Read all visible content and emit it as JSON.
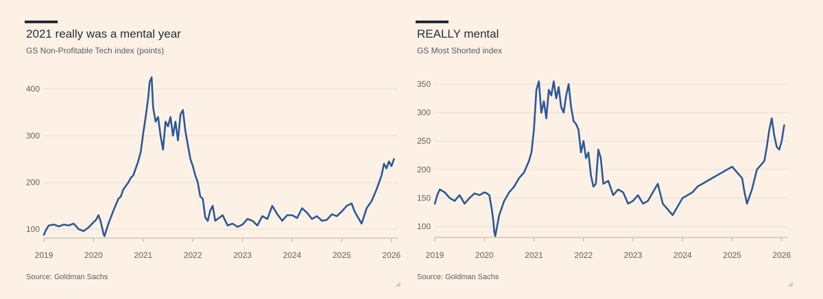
{
  "charts": {
    "left": {
      "title": "2021 really was a mental year",
      "subtitle": "GS Non-Profitable Tech index (points)",
      "source": "Source: Goldman Sachs"
    },
    "right": {
      "title": "REALLY mental",
      "subtitle": "GS Most Shorted index",
      "source": "Source: Goldman Sachs"
    }
  },
  "colors": {
    "line": "#2b5797",
    "grid": "#e8ddd3",
    "background": "#fdf1e6",
    "text": "#262a33"
  },
  "chart_data": [
    {
      "type": "line",
      "title": "2021 really was a mental year",
      "subtitle": "GS Non-Profitable Tech index (points)",
      "xlim": [
        2019.0,
        2026.1
      ],
      "ylim": [
        80,
        440
      ],
      "xticks": [
        2019,
        2020,
        2021,
        2022,
        2023,
        2024,
        2025,
        2026
      ],
      "yticks": [
        100,
        200,
        300,
        400
      ],
      "grid": true,
      "series": [
        {
          "x": [
            2019.0,
            2019.05,
            2019.1,
            2019.2,
            2019.3,
            2019.4,
            2019.5,
            2019.6,
            2019.7,
            2019.8,
            2019.9,
            2020.0,
            2020.05,
            2020.1,
            2020.14,
            2020.18,
            2020.2,
            2020.22,
            2020.3,
            2020.4,
            2020.5,
            2020.55,
            2020.6,
            2020.7,
            2020.75,
            2020.8,
            2020.9,
            2020.95,
            2021.0,
            2021.05,
            2021.1,
            2021.13,
            2021.17,
            2021.2,
            2021.25,
            2021.3,
            2021.35,
            2021.4,
            2021.45,
            2021.5,
            2021.55,
            2021.6,
            2021.65,
            2021.7,
            2021.75,
            2021.8,
            2021.85,
            2021.9,
            2021.95,
            2022.0,
            2022.05,
            2022.1,
            2022.15,
            2022.2,
            2022.25,
            2022.3,
            2022.35,
            2022.4,
            2022.45,
            2022.5,
            2022.6,
            2022.7,
            2022.8,
            2022.9,
            2023.0,
            2023.1,
            2023.2,
            2023.3,
            2023.4,
            2023.5,
            2023.6,
            2023.7,
            2023.8,
            2023.9,
            2024.0,
            2024.1,
            2024.2,
            2024.3,
            2024.4,
            2024.5,
            2024.6,
            2024.7,
            2024.8,
            2024.9,
            2025.0,
            2025.1,
            2025.2,
            2025.25,
            2025.3,
            2025.4,
            2025.5,
            2025.6,
            2025.7,
            2025.75,
            2025.8,
            2025.85,
            2025.9,
            2025.95,
            2026.0,
            2026.05
          ],
          "values": [
            88,
            100,
            108,
            110,
            106,
            110,
            108,
            112,
            100,
            96,
            104,
            115,
            120,
            130,
            118,
            100,
            90,
            85,
            112,
            140,
            165,
            170,
            185,
            200,
            210,
            215,
            245,
            265,
            305,
            340,
            380,
            415,
            425,
            360,
            330,
            340,
            300,
            270,
            330,
            320,
            340,
            300,
            330,
            290,
            345,
            355,
            310,
            280,
            250,
            235,
            215,
            200,
            170,
            165,
            125,
            118,
            140,
            150,
            118,
            122,
            130,
            108,
            112,
            105,
            110,
            122,
            118,
            108,
            128,
            122,
            150,
            132,
            118,
            130,
            130,
            124,
            145,
            135,
            122,
            128,
            118,
            120,
            132,
            128,
            138,
            150,
            155,
            140,
            130,
            112,
            145,
            160,
            185,
            200,
            215,
            240,
            230,
            245,
            235,
            250
          ]
        }
      ]
    },
    {
      "type": "line",
      "title": "REALLY mental",
      "subtitle": "GS Most Shorted index",
      "xlim": [
        2019.0,
        2026.1
      ],
      "ylim": [
        80,
        365
      ],
      "xticks": [
        2019,
        2020,
        2021,
        2022,
        2023,
        2024,
        2025,
        2026
      ],
      "yticks": [
        100,
        150,
        200,
        250,
        300,
        350
      ],
      "grid": true,
      "series": [
        {
          "x": [
            2019.0,
            2019.05,
            2019.1,
            2019.2,
            2019.3,
            2019.4,
            2019.5,
            2019.6,
            2019.7,
            2019.8,
            2019.9,
            2020.0,
            2020.05,
            2020.1,
            2020.15,
            2020.18,
            2020.2,
            2020.22,
            2020.3,
            2020.4,
            2020.5,
            2020.6,
            2020.7,
            2020.8,
            2020.9,
            2020.95,
            2021.0,
            2021.05,
            2021.1,
            2021.15,
            2021.2,
            2021.25,
            2021.3,
            2021.35,
            2021.4,
            2021.45,
            2021.5,
            2021.55,
            2021.6,
            2021.65,
            2021.7,
            2021.75,
            2021.8,
            2021.85,
            2021.9,
            2021.95,
            2022.0,
            2022.05,
            2022.1,
            2022.15,
            2022.2,
            2022.25,
            2022.3,
            2022.35,
            2022.4,
            2022.5,
            2022.6,
            2022.7,
            2022.8,
            2022.9,
            2023.0,
            2023.1,
            2023.2,
            2023.3,
            2023.4,
            2023.5,
            2023.6,
            2023.7,
            2023.8,
            2023.9,
            2024.0,
            2024.1,
            2024.2,
            2024.3,
            2024.4,
            2024.5,
            2024.6,
            2024.7,
            2024.8,
            2024.9,
            2025.0,
            2025.1,
            2025.2,
            2025.25,
            2025.3,
            2025.4,
            2025.5,
            2025.6,
            2025.65,
            2025.7,
            2025.75,
            2025.8,
            2025.85,
            2025.9,
            2025.95,
            2026.0,
            2026.05
          ],
          "values": [
            140,
            155,
            165,
            160,
            150,
            145,
            155,
            140,
            150,
            158,
            155,
            160,
            158,
            155,
            130,
            110,
            90,
            83,
            120,
            145,
            160,
            170,
            185,
            195,
            215,
            230,
            270,
            340,
            355,
            300,
            320,
            290,
            340,
            330,
            355,
            325,
            345,
            310,
            300,
            330,
            350,
            310,
            285,
            280,
            270,
            230,
            250,
            220,
            230,
            190,
            170,
            175,
            235,
            220,
            175,
            180,
            155,
            165,
            160,
            140,
            145,
            155,
            140,
            145,
            160,
            175,
            140,
            130,
            120,
            135,
            150,
            155,
            160,
            170,
            175,
            180,
            185,
            190,
            195,
            200,
            205,
            195,
            185,
            160,
            140,
            165,
            200,
            210,
            215,
            240,
            270,
            290,
            260,
            240,
            235,
            250,
            278
          ]
        }
      ]
    }
  ]
}
